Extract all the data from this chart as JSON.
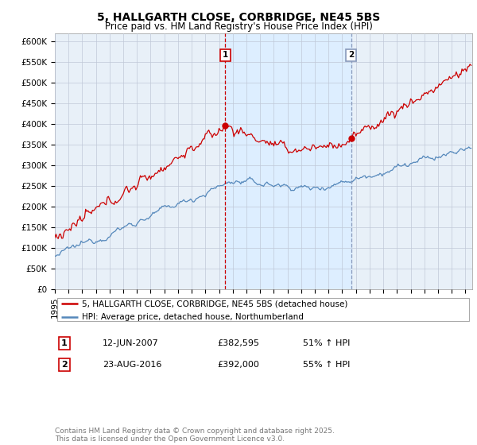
{
  "title": "5, HALLGARTH CLOSE, CORBRIDGE, NE45 5BS",
  "subtitle": "Price paid vs. HM Land Registry's House Price Index (HPI)",
  "ylabel_ticks": [
    "£0",
    "£50K",
    "£100K",
    "£150K",
    "£200K",
    "£250K",
    "£300K",
    "£350K",
    "£400K",
    "£450K",
    "£500K",
    "£550K",
    "£600K"
  ],
  "ylim": [
    0,
    620000
  ],
  "xlim_start": 1995.0,
  "xlim_end": 2025.5,
  "red_color": "#cc0000",
  "blue_color": "#5588bb",
  "shade_color": "#ddeeff",
  "legend_label_red": "5, HALLGARTH CLOSE, CORBRIDGE, NE45 5BS (detached house)",
  "legend_label_blue": "HPI: Average price, detached house, Northumberland",
  "marker1_x": 2007.45,
  "marker1_y": 382595,
  "marker2_x": 2016.65,
  "marker2_y": 392000,
  "marker1_label": "1",
  "marker2_label": "2",
  "table_data": [
    [
      "1",
      "12-JUN-2007",
      "£382,595",
      "51% ↑ HPI"
    ],
    [
      "2",
      "23-AUG-2016",
      "£392,000",
      "55% ↑ HPI"
    ]
  ],
  "footer": "Contains HM Land Registry data © Crown copyright and database right 2025.\nThis data is licensed under the Open Government Licence v3.0.",
  "background_color": "#e8eef8",
  "plot_bg_color": "#e8f0f8"
}
